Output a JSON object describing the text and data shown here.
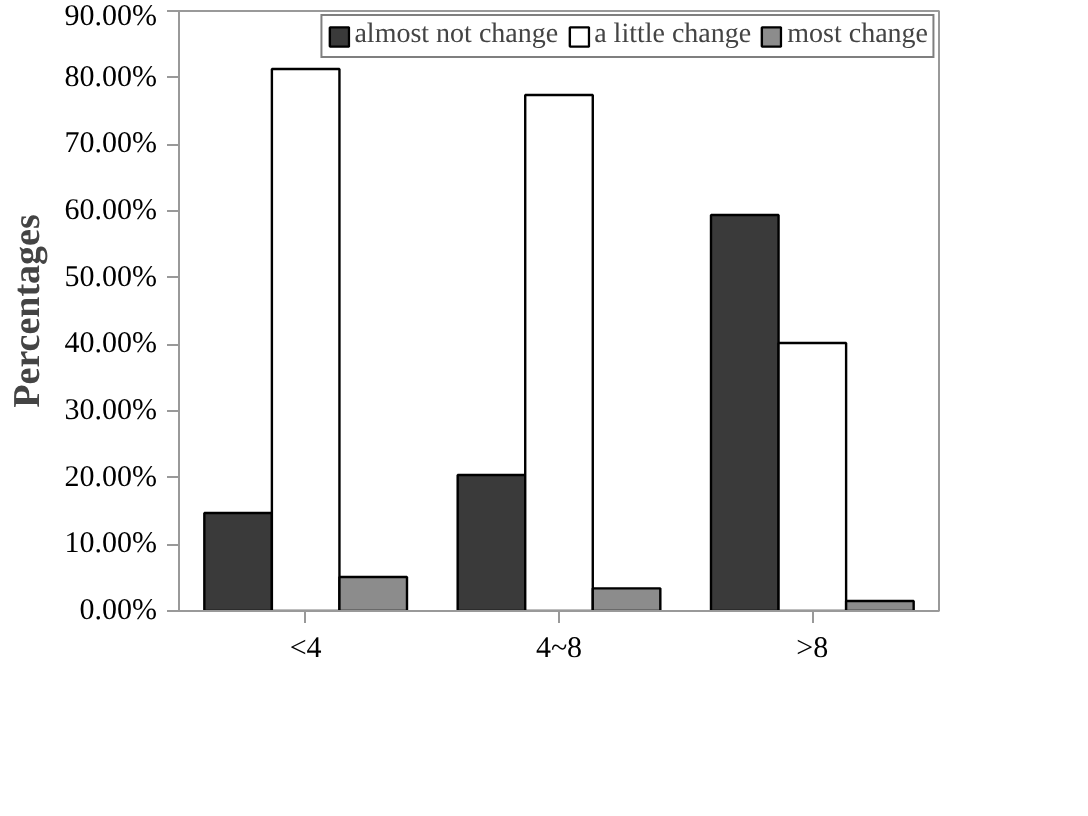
{
  "chart_data": {
    "type": "bar",
    "ylabel": "Percentages",
    "categories": [
      "<4",
      "4~8",
      ">8"
    ],
    "series": [
      {
        "name": "almost not change",
        "color": "#3a3a3a",
        "values": [
          14.7,
          20.4,
          59.4
        ]
      },
      {
        "name": "a little change",
        "color": "#ffffff",
        "values": [
          81.3,
          77.4,
          40.2
        ]
      },
      {
        "name": "most change",
        "color": "#8c8c8c",
        "values": [
          5.1,
          3.4,
          1.5
        ]
      }
    ],
    "ylim": [
      0,
      90
    ],
    "yticks": [
      {
        "value": 0,
        "label": "0.00%"
      },
      {
        "value": 10,
        "label": "10.00%"
      },
      {
        "value": 20,
        "label": "20.00%"
      },
      {
        "value": 30,
        "label": "30.00%"
      },
      {
        "value": 40,
        "label": "40.00%"
      },
      {
        "value": 50,
        "label": "50.00%"
      },
      {
        "value": 60,
        "label": "60.00%"
      },
      {
        "value": 70,
        "label": "70.00%"
      },
      {
        "value": 80,
        "label": "80.00%"
      },
      {
        "value": 90,
        "label": "90.00%"
      }
    ],
    "grid": false,
    "legend": "top"
  }
}
